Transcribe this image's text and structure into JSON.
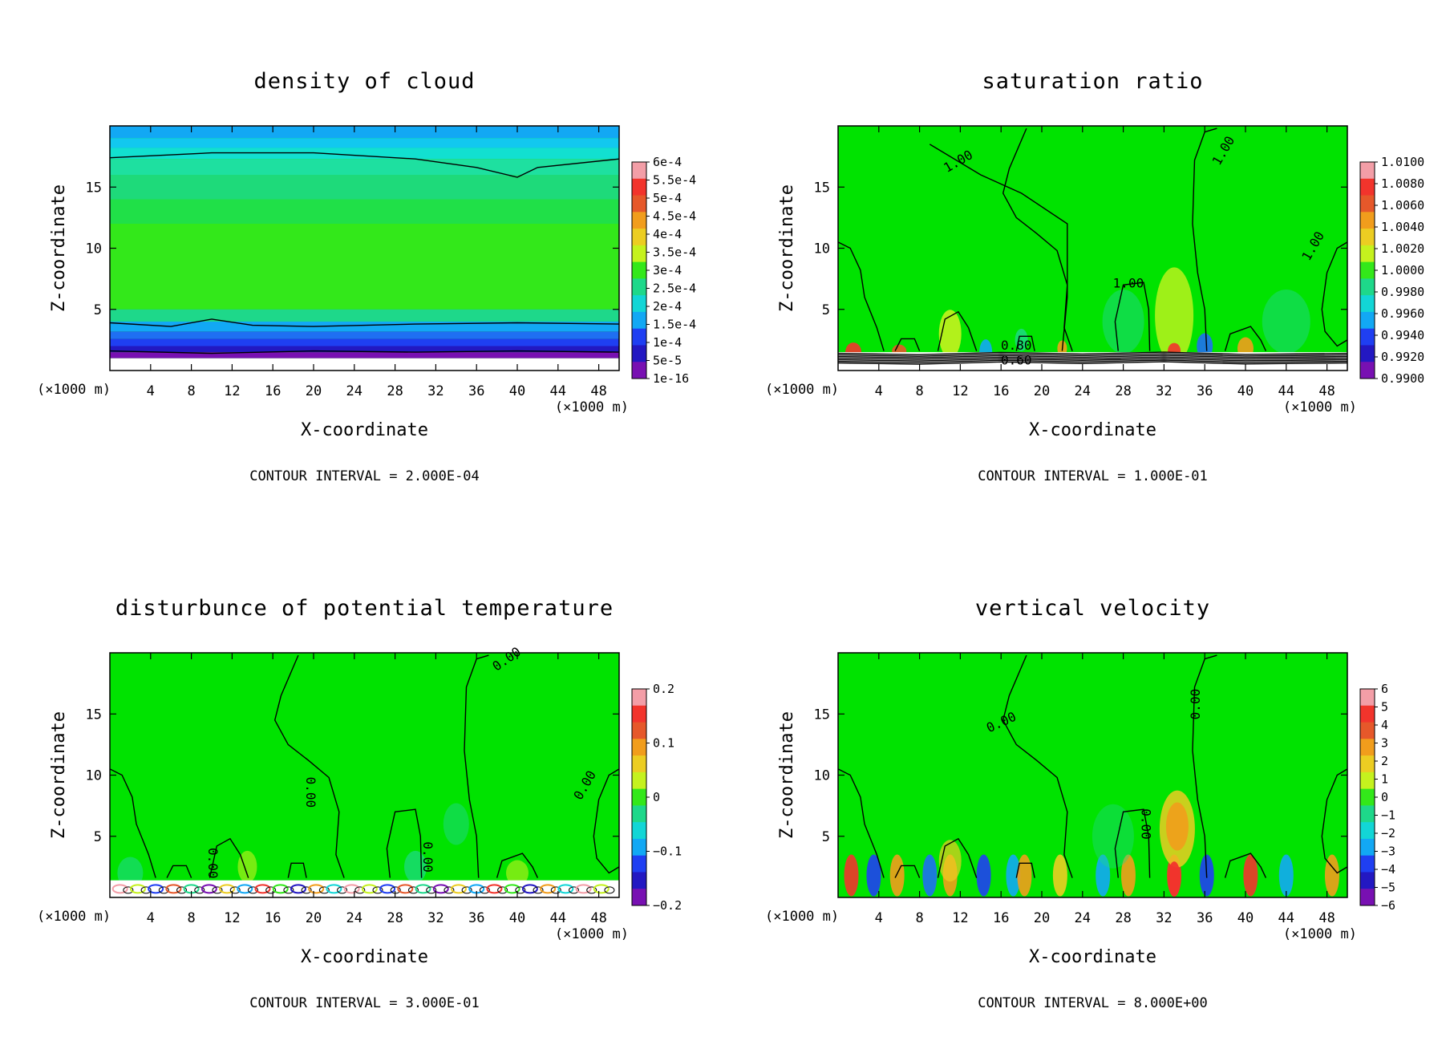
{
  "chart_data": [
    {
      "type": "heatmap",
      "title": "density of cloud",
      "xlabel": "X-coordinate",
      "ylabel": "Z-coordinate",
      "x_unit_left": "(×1000 m)",
      "x_unit_right": "(×1000 m)",
      "xlim": [
        0,
        50
      ],
      "ylim": [
        0,
        20
      ],
      "x_ticks": [
        "4",
        "8",
        "12",
        "16",
        "20",
        "24",
        "28",
        "32",
        "36",
        "40",
        "44",
        "48"
      ],
      "y_ticks": [
        "5",
        "10",
        "15"
      ],
      "colorbar_labels": [
        "6e-4",
        "5.5e-4",
        "5e-4",
        "4.5e-4",
        "4e-4",
        "3.5e-4",
        "3e-4",
        "2.5e-4",
        "2e-4",
        "1.5e-4",
        "1e-4",
        "5e-5",
        "1e-16"
      ],
      "contour_labels": [],
      "contour_interval": "CONTOUR INTERVAL = 2.000E-04"
    },
    {
      "type": "heatmap",
      "title": "saturation ratio",
      "xlabel": "X-coordinate",
      "ylabel": "Z-coordinate",
      "x_unit_left": "(×1000 m)",
      "x_unit_right": "(×1000 m)",
      "xlim": [
        0,
        50
      ],
      "ylim": [
        0,
        20
      ],
      "x_ticks": [
        "4",
        "8",
        "12",
        "16",
        "20",
        "24",
        "28",
        "32",
        "36",
        "40",
        "44",
        "48"
      ],
      "y_ticks": [
        "5",
        "10",
        "15"
      ],
      "colorbar_labels": [
        "1.0100",
        "1.0080",
        "1.0060",
        "1.0040",
        "1.0020",
        "1.0000",
        "0.9980",
        "0.9960",
        "0.9940",
        "0.9920",
        "0.9900"
      ],
      "contour_labels": [
        "1.00",
        "1.00",
        "1.00",
        "1.00",
        "0.80",
        "0.60"
      ],
      "contour_interval": "CONTOUR INTERVAL = 1.000E-01"
    },
    {
      "type": "heatmap",
      "title": "disturbunce of potential temperature",
      "xlabel": "X-coordinate",
      "ylabel": "Z-coordinate",
      "x_unit_left": "(×1000 m)",
      "x_unit_right": "(×1000 m)",
      "xlim": [
        0,
        50
      ],
      "ylim": [
        0,
        20
      ],
      "x_ticks": [
        "4",
        "8",
        "12",
        "16",
        "20",
        "24",
        "28",
        "32",
        "36",
        "40",
        "44",
        "48"
      ],
      "y_ticks": [
        "5",
        "10",
        "15"
      ],
      "colorbar_labels": [
        "0.2",
        "0.1",
        "0",
        "−0.1",
        "−0.2"
      ],
      "contour_labels": [
        "0.00",
        "0.00",
        "0.00",
        "0.00",
        "0.00"
      ],
      "contour_interval": "CONTOUR INTERVAL = 3.000E-01"
    },
    {
      "type": "heatmap",
      "title": "vertical velocity",
      "xlabel": "X-coordinate",
      "ylabel": "Z-coordinate",
      "x_unit_left": "(×1000 m)",
      "x_unit_right": "(×1000 m)",
      "xlim": [
        0,
        50
      ],
      "ylim": [
        0,
        20
      ],
      "x_ticks": [
        "4",
        "8",
        "12",
        "16",
        "20",
        "24",
        "28",
        "32",
        "36",
        "40",
        "44",
        "48"
      ],
      "y_ticks": [
        "5",
        "10",
        "15"
      ],
      "colorbar_labels": [
        "6",
        "5",
        "4",
        "3",
        "2",
        "1",
        "0",
        "−1",
        "−2",
        "−3",
        "−4",
        "−5",
        "−6"
      ],
      "contour_labels": [
        "0.00",
        "0.00",
        "0.00"
      ],
      "contour_interval": "CONTOUR INTERVAL = 8.000E+00"
    }
  ],
  "colors": {
    "background": "#00e300",
    "colorbar_scale": [
      "#f39ea7",
      "#f2342c",
      "#e6582a",
      "#f19d1c",
      "#eccd22",
      "#c5f21e",
      "#33e81a",
      "#1ed88a",
      "#12d6d6",
      "#12a8f4",
      "#1f3ff2",
      "#2318c2",
      "#7810b2"
    ]
  }
}
